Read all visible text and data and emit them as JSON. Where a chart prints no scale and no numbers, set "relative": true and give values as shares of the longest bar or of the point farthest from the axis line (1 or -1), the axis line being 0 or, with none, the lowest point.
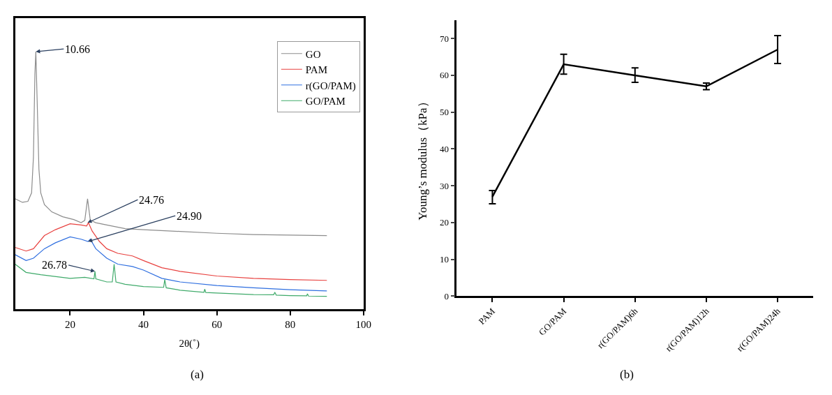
{
  "chart_data": [
    {
      "type": "line",
      "relative": true,
      "xlabel": "2θ(˚)",
      "xlim": [
        5,
        100
      ],
      "xticks": [
        20,
        40,
        60,
        80,
        100
      ],
      "tick_labels": "x",
      "legend": "top right",
      "marker": "none",
      "line_style": "solid",
      "series": [
        {
          "name": "GO",
          "color": "#8c8c8c",
          "x": [
            5,
            7,
            8.5,
            9.5,
            10,
            10.4,
            10.66,
            11,
            11.5,
            12,
            13,
            15,
            18,
            21,
            23,
            24,
            24.76,
            25.5,
            27,
            30,
            35,
            40,
            50,
            60,
            70,
            80,
            90
          ],
          "values": [
            0.429,
            0.415,
            0.419,
            0.452,
            0.59,
            0.912,
            1.0,
            0.82,
            0.544,
            0.452,
            0.406,
            0.378,
            0.359,
            0.348,
            0.336,
            0.345,
            0.429,
            0.346,
            0.336,
            0.327,
            0.313,
            0.309,
            0.302,
            0.295,
            0.29,
            0.288,
            0.286
          ]
        },
        {
          "name": "PAM",
          "color": "#e8413f",
          "x": [
            5,
            8,
            10,
            13,
            16,
            20,
            23,
            24.5,
            25,
            26,
            28,
            30,
            33,
            37,
            40,
            45,
            50,
            60,
            70,
            80,
            90
          ],
          "values": [
            0.24,
            0.226,
            0.235,
            0.286,
            0.309,
            0.332,
            0.327,
            0.323,
            0.336,
            0.304,
            0.263,
            0.235,
            0.217,
            0.207,
            0.189,
            0.161,
            0.147,
            0.129,
            0.12,
            0.115,
            0.112
          ]
        },
        {
          "name": "r(GO/PAM)",
          "color": "#2f6fe0",
          "x": [
            5,
            8,
            10,
            13,
            16,
            20,
            23,
            24.9,
            25.5,
            27,
            30,
            33,
            37,
            40,
            45,
            50,
            60,
            70,
            80,
            90
          ],
          "values": [
            0.212,
            0.189,
            0.198,
            0.235,
            0.258,
            0.281,
            0.272,
            0.263,
            0.272,
            0.235,
            0.198,
            0.175,
            0.166,
            0.152,
            0.12,
            0.106,
            0.092,
            0.083,
            0.076,
            0.071
          ]
        },
        {
          "name": "GO/PAM",
          "color": "#3faa6a",
          "x": [
            5,
            8,
            12,
            20,
            24,
            26.5,
            26.78,
            27,
            30,
            31.5,
            32,
            32.5,
            35,
            40,
            45.5,
            45.8,
            46.2,
            50,
            56.5,
            56.7,
            57,
            60,
            70,
            75.5,
            75.8,
            76.2,
            80,
            84.5,
            84.7,
            85,
            90
          ],
          "values": [
            0.175,
            0.143,
            0.134,
            0.12,
            0.124,
            0.118,
            0.147,
            0.118,
            0.106,
            0.106,
            0.175,
            0.106,
            0.097,
            0.088,
            0.085,
            0.115,
            0.083,
            0.074,
            0.066,
            0.078,
            0.065,
            0.063,
            0.057,
            0.056,
            0.066,
            0.055,
            0.053,
            0.052,
            0.06,
            0.051,
            0.05
          ]
        }
      ],
      "annotations": [
        {
          "text": "10.66",
          "x": 10.66,
          "y": 1.0
        },
        {
          "text": "24.76",
          "x": 24.76,
          "y": 0.336
        },
        {
          "text": "24.90",
          "x": 24.9,
          "y": 0.263
        },
        {
          "text": "26.78",
          "x": 26.78,
          "y": 0.147
        },
        "(a)"
      ]
    },
    {
      "type": "line",
      "categories": [
        "PAM",
        "GO/PAM",
        "r(GO/PAM)6h",
        "r(GO/PAM)12h",
        "r(GO/PAM)24h"
      ],
      "ylabel": "Young’s modulus（kPa）",
      "ylim": [
        0,
        75
      ],
      "yticks": [
        0,
        10,
        20,
        30,
        40,
        50,
        60,
        70
      ],
      "legend": false,
      "marker": "none",
      "line_style": "solid",
      "series": [
        {
          "color": "#000000",
          "values": [
            27,
            63,
            60,
            57,
            67
          ],
          "errors": [
            [
              25.1,
              28.7
            ],
            [
              60.3,
              65.7
            ],
            [
              58.1,
              62.0
            ],
            [
              56.1,
              57.9
            ],
            [
              63.2,
              70.8
            ]
          ]
        }
      ],
      "annotations": [
        "(b)"
      ]
    }
  ]
}
